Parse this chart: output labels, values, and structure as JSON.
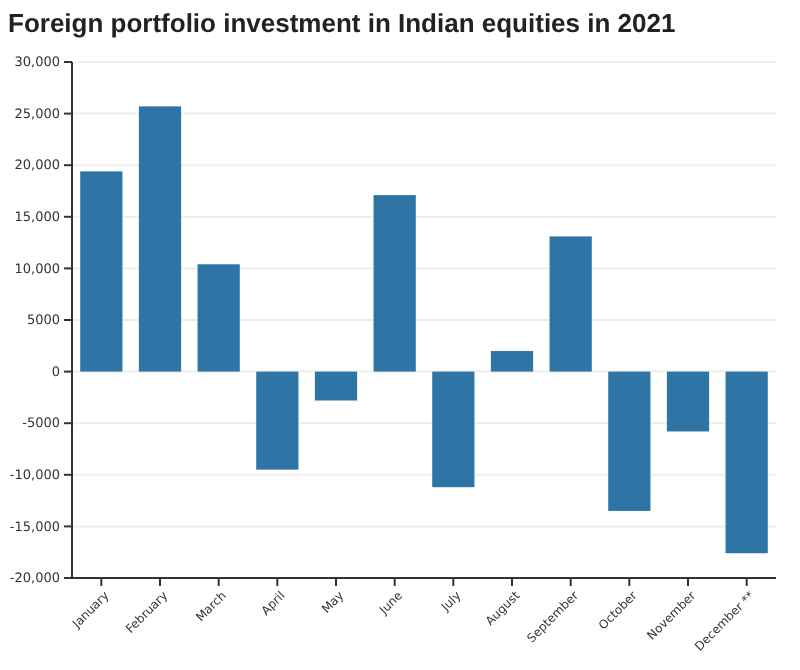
{
  "chart_data": {
    "type": "bar",
    "title": "Foreign portfolio investment in Indian equities in 2021",
    "categories": [
      "January",
      "February",
      "March",
      "April",
      "May",
      "June",
      "July",
      "August",
      "September",
      "October",
      "November",
      "December **"
    ],
    "values": [
      19400,
      25700,
      10400,
      -9500,
      -2800,
      17100,
      -11200,
      2000,
      13100,
      -13500,
      -5800,
      -17600
    ],
    "color": "#2e75a6",
    "ylim": [
      -20000,
      30000
    ],
    "yticks": [
      {
        "value": -20000,
        "label": "-20,000"
      },
      {
        "value": -15000,
        "label": "-15,000"
      },
      {
        "value": -10000,
        "label": "-10,000"
      },
      -5000,
      0,
      5000,
      {
        "value": 10000,
        "label": "10,000"
      },
      {
        "value": 15000,
        "label": "15,000"
      },
      {
        "value": 20000,
        "label": "20,000"
      },
      {
        "value": 25000,
        "label": "25,000"
      },
      {
        "value": 30000,
        "label": "30,000"
      }
    ],
    "grid": "y"
  }
}
